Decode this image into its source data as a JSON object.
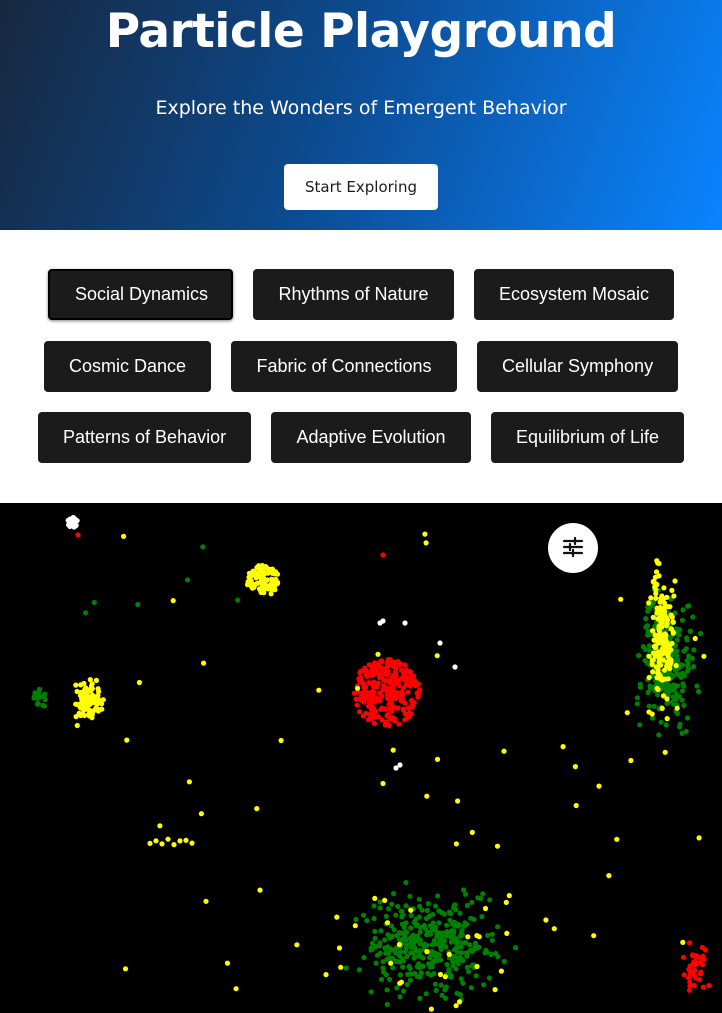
{
  "hero": {
    "title": "Particle Playground",
    "subtitle": "Explore the Wonders of Emergent Behavior",
    "cta_label": "Start Exploring"
  },
  "categories": {
    "active": "Social Dynamics",
    "rows": [
      [
        "Social Dynamics",
        "Rhythms of Nature",
        "Ecosystem Mosaic"
      ],
      [
        "Cosmic Dance",
        "Fabric of Connections",
        "Cellular Symphony"
      ],
      [
        "Patterns of Behavior",
        "Adaptive Evolution",
        "Equilibrium of Life"
      ]
    ]
  },
  "simulation": {
    "settings_icon": "sliders-icon",
    "particle_colors": {
      "red": "#ff0000",
      "yellow": "#ffff00",
      "green": "#008000",
      "white": "#ffffff"
    }
  }
}
